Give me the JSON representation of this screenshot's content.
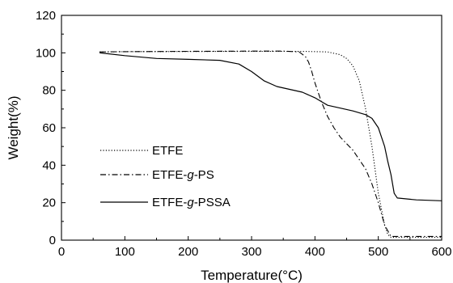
{
  "chart_data": {
    "type": "line",
    "title": "",
    "xlabel": "Temperature(°C)",
    "ylabel": "Weight(%)",
    "xlim": [
      0,
      600
    ],
    "ylim": [
      0,
      120
    ],
    "xticks": [
      "0",
      "100",
      "200",
      "300",
      "400",
      "500",
      "600"
    ],
    "yticks": [
      "0",
      "20",
      "40",
      "60",
      "80",
      "100",
      "120"
    ],
    "grid": false,
    "legend_position": "center-left",
    "series": [
      {
        "name": "ETFE",
        "name_parts": [
          {
            "t": "ETFE",
            "i": false
          }
        ],
        "style": "dotted",
        "color": "#000000",
        "x": [
          60,
          100,
          200,
          300,
          380,
          420,
          440,
          450,
          460,
          470,
          480,
          490,
          500,
          510,
          515,
          520,
          530,
          560,
          600
        ],
        "y": [
          100.5,
          100.6,
          100.7,
          100.8,
          100.8,
          100.5,
          99,
          97,
          93,
          85,
          70,
          50,
          25,
          8,
          3,
          1.5,
          1.5,
          1.5,
          1.5
        ]
      },
      {
        "name": "ETFE-g-PS",
        "name_parts": [
          {
            "t": "ETFE-",
            "i": false
          },
          {
            "t": "g",
            "i": true
          },
          {
            "t": "-PS",
            "i": false
          }
        ],
        "style": "dashdot",
        "color": "#000000",
        "x": [
          60,
          100,
          200,
          300,
          350,
          375,
          385,
          390,
          395,
          400,
          410,
          420,
          430,
          440,
          460,
          480,
          490,
          500,
          505,
          510,
          520,
          550,
          600
        ],
        "y": [
          100.5,
          100.6,
          100.8,
          100.9,
          100.9,
          100.5,
          98,
          95,
          90,
          84,
          74,
          66,
          60,
          55,
          48,
          38,
          30,
          20,
          14,
          8,
          2,
          2,
          2
        ]
      },
      {
        "name": "ETFE-g-PSSA",
        "name_parts": [
          {
            "t": "ETFE-",
            "i": false
          },
          {
            "t": "g",
            "i": true
          },
          {
            "t": "-PSSA",
            "i": false
          }
        ],
        "style": "solid",
        "color": "#000000",
        "x": [
          60,
          100,
          150,
          200,
          250,
          280,
          300,
          320,
          340,
          360,
          380,
          400,
          420,
          440,
          460,
          480,
          490,
          500,
          505,
          510,
          515,
          520,
          525,
          530,
          560,
          600
        ],
        "y": [
          100,
          98.5,
          97,
          96.5,
          96,
          94,
          90,
          85,
          82,
          80.5,
          79,
          76,
          72,
          70.5,
          69,
          67,
          65,
          60,
          55,
          50,
          42,
          35,
          25,
          22.5,
          21.5,
          21
        ]
      }
    ]
  }
}
